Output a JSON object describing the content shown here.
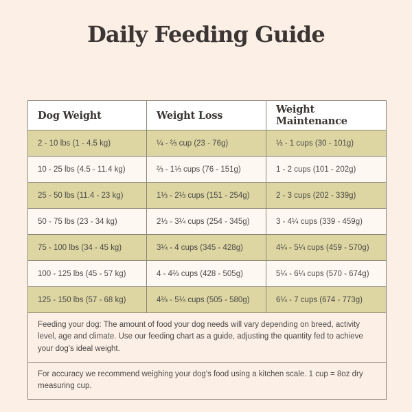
{
  "page": {
    "title": "Daily Feeding Guide"
  },
  "colors": {
    "page_background": "#fcefe6",
    "highlight_row": "#ddd6a2",
    "alternate_row": "#fdf8f1",
    "header_row": "#ffffff",
    "border": "#8d8779",
    "title_text": "#3b3633",
    "body_text": "#4c4a47"
  },
  "table": {
    "headers": [
      "Dog Weight",
      "Weight Loss",
      "Weight Maintenance"
    ],
    "rows": [
      [
        "2 - 10 lbs (1 - 4.5 kg)",
        "¼ - ⅔ cup (23 - 76g)",
        "⅓ - 1 cups (30 - 101g)"
      ],
      [
        "10 - 25 lbs (4.5 - 11.4 kg)",
        "⅔ - 1⅓ cups (76 - 151g)",
        "1 - 2 cups (101 - 202g)"
      ],
      [
        "25 - 50 lbs (11.4 - 23 kg)",
        "1⅓ - 2⅓ cups (151 - 254g)",
        "2 - 3 cups (202 - 339g)"
      ],
      [
        "50 - 75 lbs (23 - 34 kg)",
        "2⅓ - 3¼ cups (254 - 345g)",
        "3 - 4¼ cups (339 - 459g)"
      ],
      [
        "75 - 100 lbs (34 - 45 kg)",
        "3¼ - 4 cups (345 - 428g)",
        "4¼ - 5¼ cups (459 - 570g)"
      ],
      [
        "100 - 125 lbs (45 - 57 kg)",
        "4 - 4⅔ cups (428 - 505g)",
        "5¼ - 6¼ cups (570 - 674g)"
      ],
      [
        "125 - 150 lbs (57 - 68 kg)",
        "4⅔ - 5¼ cups (505 - 580g)",
        "6¼ - 7 cups (674 - 773g)"
      ]
    ],
    "notes": [
      "Feeding your dog: The amount of food your dog needs will vary depending on breed, activity level, age and climate. Use our feeding chart as a guide, adjusting the quantity fed to achieve your dog's ideal weight.",
      "For accuracy we recommend weighing your dog's food using a kitchen scale. 1 cup = 8oz dry measuring cup."
    ]
  },
  "chart_data": {
    "type": "table",
    "title": "Daily Feeding Guide",
    "columns": [
      "Dog Weight",
      "Weight Loss",
      "Weight Maintenance"
    ],
    "rows": [
      {
        "dog_weight": "2 - 10 lbs (1 - 4.5 kg)",
        "weight_loss": "¼ - ⅔ cup (23 - 76g)",
        "weight_maintenance": "⅓ - 1 cups (30 - 101g)"
      },
      {
        "dog_weight": "10 - 25 lbs (4.5 - 11.4 kg)",
        "weight_loss": "⅔ - 1⅓ cups (76 - 151g)",
        "weight_maintenance": "1 - 2 cups (101 - 202g)"
      },
      {
        "dog_weight": "25 - 50 lbs (11.4 - 23 kg)",
        "weight_loss": "1⅓ - 2⅓ cups (151 - 254g)",
        "weight_maintenance": "2 - 3 cups (202 - 339g)"
      },
      {
        "dog_weight": "50 - 75 lbs (23 - 34 kg)",
        "weight_loss": "2⅓ - 3¼ cups (254 - 345g)",
        "weight_maintenance": "3 - 4¼ cups (339 - 459g)"
      },
      {
        "dog_weight": "75 - 100 lbs (34 - 45 kg)",
        "weight_loss": "3¼ - 4 cups (345 - 428g)",
        "weight_maintenance": "4¼ - 5¼ cups (459 - 570g)"
      },
      {
        "dog_weight": "100 - 125 lbs (45 - 57 kg)",
        "weight_loss": "4 - 4⅔ cups (428 - 505g)",
        "weight_maintenance": "5¼ - 6¼ cups (570 - 674g)"
      },
      {
        "dog_weight": "125 - 150 lbs (57 - 68 kg)",
        "weight_loss": "4⅔ - 5¼ cups (505 - 580g)",
        "weight_maintenance": "6¼ - 7 cups (674 - 773g)"
      }
    ],
    "footnotes": [
      "Feeding your dog: The amount of food your dog needs will vary depending on breed, activity level, age and climate. Use our feeding chart as a guide, adjusting the quantity fed to achieve your dog's ideal weight.",
      "For accuracy we recommend weighing your dog's food using a kitchen scale. 1 cup = 8oz dry measuring cup."
    ]
  }
}
